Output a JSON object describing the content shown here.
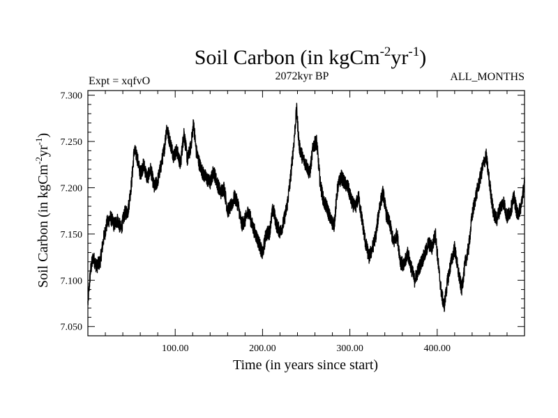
{
  "chart_data": {
    "type": "line",
    "title": "Soil Carbon (in kgCm",
    "title_sup1": "-2",
    "title_mid": "yr",
    "title_sup2": "-1",
    "title_end": ")",
    "subtitle_left": "Expt = xqfvO",
    "subtitle_center": "2072kyr BP",
    "subtitle_right": "ALL_MONTHS",
    "xlabel": "Time (in years since start)",
    "ylabel": "Soil Carbon (in kgCm",
    "ylabel_sup1": "-2",
    "ylabel_mid": "yr",
    "ylabel_sup2": "-1",
    "ylabel_end": ")",
    "xlim": [
      0,
      500
    ],
    "ylim": [
      7.04,
      7.305
    ],
    "x_ticks": [
      100,
      200,
      300,
      400
    ],
    "x_tick_labels": [
      "100.00",
      "200.00",
      "300.00",
      "400.00"
    ],
    "y_ticks": [
      7.05,
      7.1,
      7.15,
      7.2,
      7.25,
      7.3
    ],
    "y_tick_labels": [
      "7.050",
      "7.100",
      "7.150",
      "7.200",
      "7.250",
      "7.300"
    ],
    "line_color": "#000000",
    "series": [
      {
        "name": "Soil Carbon",
        "x": [
          0,
          3,
          6,
          10,
          14,
          18,
          22,
          26,
          30,
          34,
          38,
          42,
          46,
          50,
          53,
          56,
          60,
          64,
          68,
          72,
          76,
          80,
          84,
          88,
          90,
          94,
          98,
          102,
          106,
          110,
          114,
          118,
          121,
          124,
          128,
          132,
          136,
          140,
          144,
          148,
          152,
          156,
          160,
          164,
          168,
          172,
          176,
          180,
          184,
          188,
          192,
          196,
          200,
          204,
          208,
          212,
          216,
          220,
          224,
          228,
          232,
          236,
          239,
          242,
          246,
          250,
          254,
          258,
          262,
          266,
          270,
          274,
          278,
          282,
          286,
          290,
          294,
          298,
          302,
          306,
          310,
          314,
          318,
          322,
          326,
          330,
          334,
          338,
          342,
          346,
          350,
          354,
          358,
          362,
          366,
          370,
          374,
          378,
          382,
          386,
          390,
          394,
          398,
          402,
          405,
          408,
          412,
          416,
          420,
          424,
          428,
          432,
          436,
          440,
          444,
          448,
          452,
          456,
          460,
          464,
          468,
          472,
          476,
          480,
          484,
          488,
          492,
          496,
          500
        ],
        "values": [
          7.075,
          7.11,
          7.125,
          7.115,
          7.12,
          7.145,
          7.162,
          7.168,
          7.16,
          7.165,
          7.155,
          7.172,
          7.175,
          7.205,
          7.24,
          7.235,
          7.215,
          7.225,
          7.21,
          7.22,
          7.2,
          7.208,
          7.225,
          7.245,
          7.265,
          7.25,
          7.235,
          7.24,
          7.225,
          7.26,
          7.23,
          7.245,
          7.27,
          7.24,
          7.225,
          7.215,
          7.21,
          7.205,
          7.218,
          7.205,
          7.195,
          7.2,
          7.175,
          7.18,
          7.19,
          7.182,
          7.16,
          7.165,
          7.175,
          7.16,
          7.15,
          7.14,
          7.128,
          7.15,
          7.152,
          7.178,
          7.16,
          7.152,
          7.162,
          7.18,
          7.21,
          7.25,
          7.285,
          7.245,
          7.232,
          7.225,
          7.215,
          7.245,
          7.25,
          7.205,
          7.185,
          7.178,
          7.165,
          7.16,
          7.2,
          7.212,
          7.205,
          7.2,
          7.185,
          7.178,
          7.19,
          7.165,
          7.14,
          7.125,
          7.135,
          7.15,
          7.18,
          7.195,
          7.17,
          7.16,
          7.14,
          7.15,
          7.12,
          7.115,
          7.13,
          7.115,
          7.1,
          7.11,
          7.12,
          7.128,
          7.14,
          7.135,
          7.15,
          7.11,
          7.085,
          7.072,
          7.1,
          7.12,
          7.135,
          7.11,
          7.09,
          7.118,
          7.135,
          7.17,
          7.19,
          7.205,
          7.222,
          7.235,
          7.205,
          7.175,
          7.165,
          7.178,
          7.185,
          7.168,
          7.175,
          7.19,
          7.17,
          7.18,
          7.205
        ]
      }
    ]
  }
}
